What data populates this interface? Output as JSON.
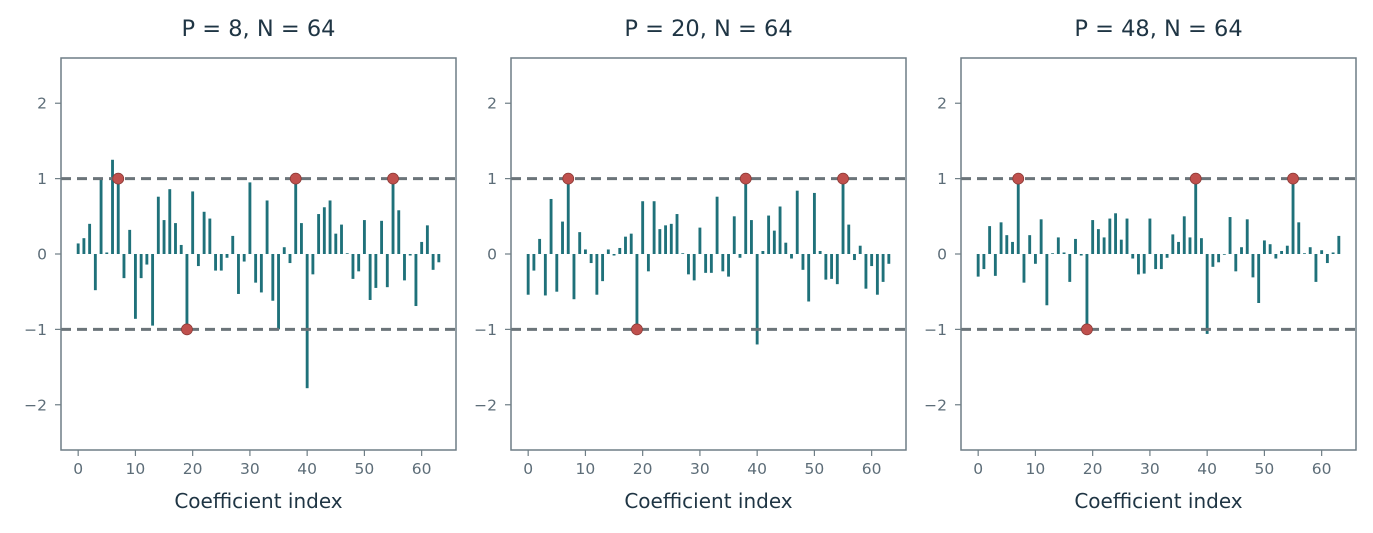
{
  "chart_data": [
    {
      "type": "bar",
      "title": "P = 8, N = 64",
      "xlabel": "Coefficient index",
      "ylabel": "",
      "xlim": [
        -3,
        66
      ],
      "ylim": [
        -2.6,
        2.6
      ],
      "xticks": [
        0,
        10,
        20,
        30,
        40,
        50,
        60
      ],
      "yticks": [
        -2,
        -1,
        0,
        1,
        2
      ],
      "xtick_labels": [
        "0",
        "10",
        "20",
        "30",
        "40",
        "50",
        "60"
      ],
      "ytick_labels": [
        "−2",
        "−1",
        "0",
        "1",
        "2"
      ],
      "reference_lines": [
        1,
        -1
      ],
      "x": [
        0,
        1,
        2,
        3,
        4,
        5,
        6,
        7,
        8,
        9,
        10,
        11,
        12,
        13,
        14,
        15,
        16,
        17,
        18,
        19,
        20,
        21,
        22,
        23,
        24,
        25,
        26,
        27,
        28,
        29,
        30,
        31,
        32,
        33,
        34,
        35,
        36,
        37,
        38,
        39,
        40,
        41,
        42,
        43,
        44,
        45,
        46,
        47,
        48,
        49,
        50,
        51,
        52,
        53,
        54,
        55,
        56,
        57,
        58,
        59,
        60,
        61,
        62,
        63
      ],
      "values": [
        0.14,
        0.21,
        0.4,
        -0.48,
        1.0,
        0.02,
        1.25,
        1.0,
        -0.32,
        0.32,
        -0.86,
        -0.32,
        -0.14,
        -0.95,
        0.76,
        0.45,
        0.86,
        0.41,
        0.12,
        -1.0,
        0.83,
        -0.16,
        0.56,
        0.47,
        -0.22,
        -0.22,
        -0.05,
        0.24,
        -0.53,
        -0.1,
        0.95,
        -0.38,
        -0.51,
        0.71,
        -0.62,
        -1.0,
        0.09,
        -0.12,
        1.0,
        0.41,
        -1.78,
        -0.27,
        0.53,
        0.62,
        0.71,
        0.27,
        0.39,
        0.01,
        -0.33,
        -0.23,
        0.45,
        -0.61,
        -0.45,
        0.44,
        -0.44,
        1.0,
        0.58,
        -0.35,
        -0.02,
        -0.69,
        0.16,
        0.38,
        -0.21,
        -0.11
      ],
      "highlighted_points": [
        {
          "x": 7,
          "y": 1
        },
        {
          "x": 19,
          "y": -1
        },
        {
          "x": 38,
          "y": 1
        },
        {
          "x": 55,
          "y": 1
        }
      ],
      "grid": false,
      "colors": {
        "bar": "#1f717a",
        "marker": "#c0504d",
        "reference": "#6b7479",
        "frame": "#6e7d85"
      }
    },
    {
      "type": "bar",
      "title": "P = 20, N = 64",
      "xlabel": "Coefficient index",
      "ylabel": "",
      "xlim": [
        -3,
        66
      ],
      "ylim": [
        -2.6,
        2.6
      ],
      "xticks": [
        0,
        10,
        20,
        30,
        40,
        50,
        60
      ],
      "yticks": [
        -2,
        -1,
        0,
        1,
        2
      ],
      "xtick_labels": [
        "0",
        "10",
        "20",
        "30",
        "40",
        "50",
        "60"
      ],
      "ytick_labels": [
        "−2",
        "−1",
        "0",
        "1",
        "2"
      ],
      "reference_lines": [
        1,
        -1
      ],
      "x": [
        0,
        1,
        2,
        3,
        4,
        5,
        6,
        7,
        8,
        9,
        10,
        11,
        12,
        13,
        14,
        15,
        16,
        17,
        18,
        19,
        20,
        21,
        22,
        23,
        24,
        25,
        26,
        27,
        28,
        29,
        30,
        31,
        32,
        33,
        34,
        35,
        36,
        37,
        38,
        39,
        40,
        41,
        42,
        43,
        44,
        45,
        46,
        47,
        48,
        49,
        50,
        51,
        52,
        53,
        54,
        55,
        56,
        57,
        58,
        59,
        60,
        61,
        62,
        63
      ],
      "values": [
        -0.54,
        -0.22,
        0.2,
        -0.55,
        0.73,
        -0.5,
        0.43,
        1.0,
        -0.6,
        0.29,
        0.06,
        -0.12,
        -0.54,
        -0.36,
        0.06,
        -0.02,
        0.08,
        0.23,
        0.27,
        -1.0,
        0.7,
        -0.23,
        0.7,
        0.33,
        0.38,
        0.4,
        0.53,
        0.01,
        -0.27,
        -0.35,
        0.35,
        -0.25,
        -0.25,
        0.76,
        -0.23,
        -0.3,
        0.5,
        -0.05,
        1.0,
        0.45,
        -1.2,
        0.04,
        0.51,
        0.31,
        0.63,
        0.15,
        -0.06,
        0.84,
        -0.21,
        -0.63,
        0.81,
        0.04,
        -0.34,
        -0.33,
        -0.4,
        1.0,
        0.39,
        -0.08,
        0.11,
        -0.46,
        -0.16,
        -0.54,
        -0.37,
        -0.13
      ],
      "highlighted_points": [
        {
          "x": 7,
          "y": 1
        },
        {
          "x": 19,
          "y": -1
        },
        {
          "x": 38,
          "y": 1
        },
        {
          "x": 55,
          "y": 1
        }
      ],
      "grid": false,
      "colors": {
        "bar": "#1f717a",
        "marker": "#c0504d",
        "reference": "#6b7479",
        "frame": "#6e7d85"
      }
    },
    {
      "type": "bar",
      "title": "P = 48, N = 64",
      "xlabel": "Coefficient index",
      "ylabel": "",
      "xlim": [
        -3,
        66
      ],
      "ylim": [
        -2.6,
        2.6
      ],
      "xticks": [
        0,
        10,
        20,
        30,
        40,
        50,
        60
      ],
      "yticks": [
        -2,
        -1,
        0,
        1,
        2
      ],
      "xtick_labels": [
        "0",
        "10",
        "20",
        "30",
        "40",
        "50",
        "60"
      ],
      "ytick_labels": [
        "−2",
        "−1",
        "0",
        "1",
        "2"
      ],
      "reference_lines": [
        1,
        -1
      ],
      "x": [
        0,
        1,
        2,
        3,
        4,
        5,
        6,
        7,
        8,
        9,
        10,
        11,
        12,
        13,
        14,
        15,
        16,
        17,
        18,
        19,
        20,
        21,
        22,
        23,
        24,
        25,
        26,
        27,
        28,
        29,
        30,
        31,
        32,
        33,
        34,
        35,
        36,
        37,
        38,
        39,
        40,
        41,
        42,
        43,
        44,
        45,
        46,
        47,
        48,
        49,
        50,
        51,
        52,
        53,
        54,
        55,
        56,
        57,
        58,
        59,
        60,
        61,
        62,
        63
      ],
      "values": [
        -0.3,
        -0.2,
        0.37,
        -0.29,
        0.42,
        0.25,
        0.16,
        1.0,
        -0.38,
        0.25,
        -0.13,
        0.46,
        -0.68,
        0.01,
        0.22,
        0.02,
        -0.37,
        0.2,
        -0.02,
        -1.0,
        0.45,
        0.33,
        0.22,
        0.47,
        0.54,
        0.19,
        0.47,
        -0.06,
        -0.27,
        -0.26,
        0.47,
        -0.2,
        -0.2,
        -0.05,
        0.26,
        0.16,
        0.5,
        0.22,
        1.0,
        0.21,
        -1.06,
        -0.17,
        -0.11,
        -0.01,
        0.49,
        -0.23,
        0.09,
        0.46,
        -0.31,
        -0.65,
        0.18,
        0.13,
        -0.06,
        0.04,
        0.11,
        1.0,
        0.42,
        0.01,
        0.09,
        -0.37,
        0.05,
        -0.12,
        0.02,
        0.24
      ],
      "highlighted_points": [
        {
          "x": 7,
          "y": 1
        },
        {
          "x": 19,
          "y": -1
        },
        {
          "x": 38,
          "y": 1
        },
        {
          "x": 55,
          "y": 1
        }
      ],
      "grid": false,
      "colors": {
        "bar": "#1f717a",
        "marker": "#c0504d",
        "reference": "#6b7479",
        "frame": "#6e7d85"
      }
    }
  ]
}
